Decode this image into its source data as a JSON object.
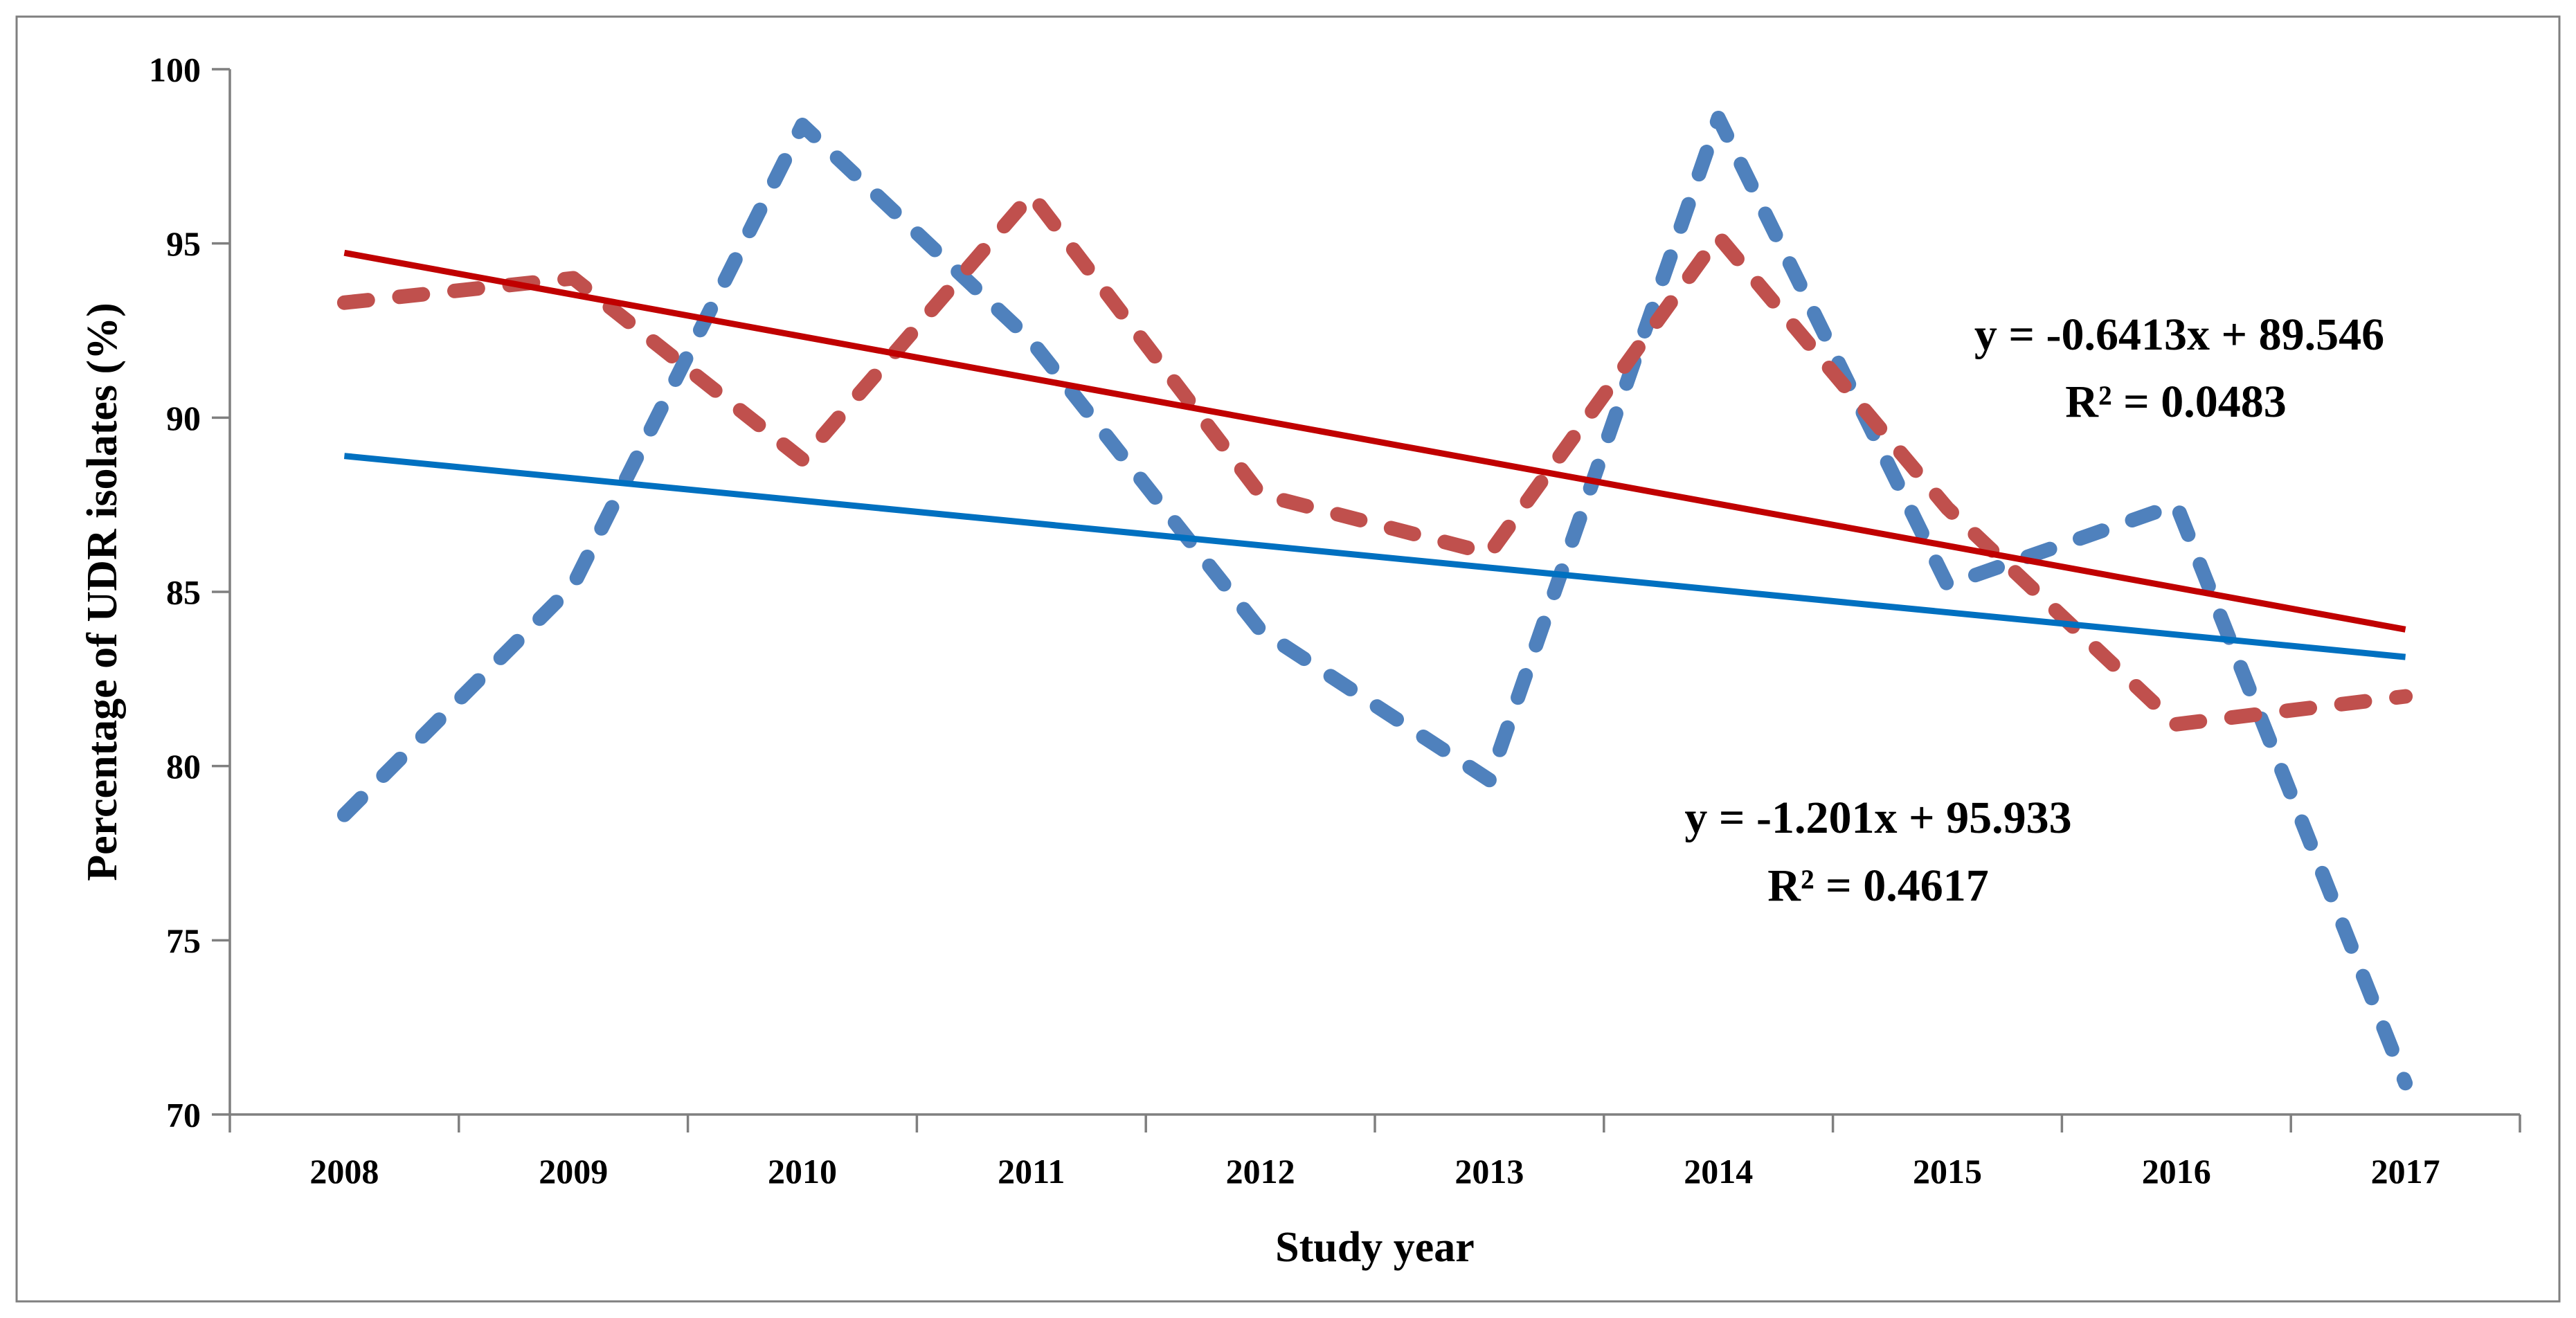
{
  "figure": {
    "background": "#ffffff",
    "border_color": "#7f7f7f"
  },
  "axes": {
    "x_title": "Study year",
    "y_title": "Percentage of UDR isolates (%)",
    "y_min": 70,
    "y_max": 100,
    "y_step": 5,
    "axis_color": "#7f7f7f",
    "label_color": "#000000"
  },
  "annotations": {
    "eq1_line1": "y = -0.6413x + 89.546",
    "eq1_line2": "R² = 0.0483",
    "eq1_color": "#c00000",
    "eq2_line1": "y = -1.201x + 95.933",
    "eq2_line2": "R² = 0.4617",
    "eq2_color": "#333399"
  },
  "chart_data": {
    "type": "line",
    "title": "",
    "xlabel": "Study year",
    "ylabel": "Percentage of UDR isolates (%)",
    "ylim": [
      70,
      100
    ],
    "grid": false,
    "legend": "none",
    "categories": [
      2008,
      2009,
      2010,
      2011,
      2012,
      2013,
      2014,
      2015,
      2016,
      2017
    ],
    "series": [
      {
        "name": "UDR isolates - blue dashed series",
        "color": "#4f81bd",
        "dashed": true,
        "values": [
          78.6,
          85.2,
          98.4,
          92.2,
          83.9,
          79.6,
          98.6,
          85.2,
          87.5,
          70.9
        ]
      },
      {
        "name": "UDR isolates - red dashed series",
        "color": "#c0504d",
        "dashed": true,
        "values": [
          93.3,
          94.0,
          88.8,
          96.4,
          87.8,
          86.1,
          95.2,
          87.4,
          81.2,
          82.0
        ]
      }
    ],
    "trendlines": [
      {
        "series_index": 0,
        "color": "#0070c0",
        "equation": "y = -0.6413x + 89.546",
        "r_squared": 0.0483,
        "y_start": 88.9,
        "y_end": 83.13
      },
      {
        "series_index": 1,
        "color": "#c00000",
        "equation": "y = -1.201x + 95.933",
        "r_squared": 0.4617,
        "y_start": 94.73,
        "y_end": 83.92
      }
    ]
  }
}
